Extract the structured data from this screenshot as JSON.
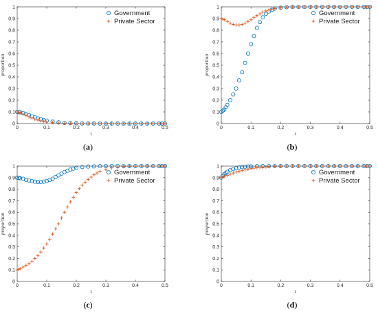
{
  "chart_data": [
    {
      "type": "scatter",
      "caption": "(a)",
      "xlabel": "t",
      "ylabel": "proportion",
      "xlim": [
        0,
        0.5
      ],
      "ylim": [
        0,
        1
      ],
      "xticks": [
        "0",
        "0.1",
        "0.2",
        "0.3",
        "0.4",
        "0.5"
      ],
      "yticks": [
        "0",
        "0.1",
        "0.2",
        "0.3",
        "0.4",
        "0.5",
        "0.6",
        "0.7",
        "0.8",
        "0.9",
        "1"
      ],
      "legend_position": "top-right",
      "series": [
        {
          "name": "Government",
          "marker": "circle",
          "color": "#0072BD",
          "x": [
            0,
            0.005,
            0.01,
            0.02,
            0.03,
            0.04,
            0.05,
            0.06,
            0.07,
            0.08,
            0.09,
            0.1,
            0.12,
            0.14,
            0.16,
            0.18,
            0.2,
            0.22,
            0.24,
            0.26,
            0.28,
            0.3,
            0.32,
            0.34,
            0.36,
            0.38,
            0.4,
            0.42,
            0.44,
            0.46,
            0.48,
            0.49,
            0.5
          ],
          "y": [
            0.1,
            0.098,
            0.096,
            0.09,
            0.082,
            0.072,
            0.062,
            0.053,
            0.044,
            0.037,
            0.03,
            0.024,
            0.016,
            0.01,
            0.006,
            0.004,
            0.002,
            0.001,
            0.001,
            0,
            0,
            0,
            0,
            0,
            0,
            0,
            0,
            0,
            0,
            0,
            0,
            0,
            0
          ]
        },
        {
          "name": "Private Sector",
          "marker": "plus",
          "color": "#D95319",
          "x": [
            0,
            0.005,
            0.01,
            0.02,
            0.03,
            0.04,
            0.05,
            0.06,
            0.07,
            0.08,
            0.09,
            0.1,
            0.12,
            0.14,
            0.16,
            0.18,
            0.2,
            0.22,
            0.24,
            0.26,
            0.28,
            0.3,
            0.32,
            0.34,
            0.36,
            0.38,
            0.4,
            0.42,
            0.44,
            0.46,
            0.48,
            0.49,
            0.5
          ],
          "y": [
            0.1,
            0.096,
            0.092,
            0.082,
            0.07,
            0.058,
            0.047,
            0.038,
            0.03,
            0.024,
            0.018,
            0.014,
            0.008,
            0.005,
            0.003,
            0.002,
            0.001,
            0,
            0,
            0,
            0,
            0,
            0,
            0,
            0,
            0,
            0,
            0,
            0,
            0,
            0,
            0,
            0
          ]
        }
      ]
    },
    {
      "type": "scatter",
      "caption": "(b)",
      "xlabel": "t",
      "ylabel": "proportion",
      "xlim": [
        0,
        0.5
      ],
      "ylim": [
        0,
        1
      ],
      "xticks": [
        "0",
        "0.1",
        "0.2",
        "0.3",
        "0.4",
        "0.5"
      ],
      "yticks": [
        "0",
        "0.1",
        "0.2",
        "0.3",
        "0.4",
        "0.5",
        "0.6",
        "0.7",
        "0.8",
        "0.9",
        "1"
      ],
      "legend_position": "top-right",
      "series": [
        {
          "name": "Government",
          "marker": "circle",
          "color": "#0072BD",
          "x": [
            0,
            0.005,
            0.01,
            0.015,
            0.02,
            0.03,
            0.04,
            0.05,
            0.06,
            0.07,
            0.08,
            0.09,
            0.1,
            0.11,
            0.12,
            0.13,
            0.14,
            0.15,
            0.16,
            0.17,
            0.18,
            0.2,
            0.22,
            0.24,
            0.26,
            0.28,
            0.3,
            0.32,
            0.34,
            0.36,
            0.38,
            0.4,
            0.42,
            0.44,
            0.46,
            0.48,
            0.49,
            0.5
          ],
          "y": [
            0.1,
            0.11,
            0.12,
            0.14,
            0.16,
            0.2,
            0.25,
            0.3,
            0.37,
            0.44,
            0.52,
            0.6,
            0.68,
            0.75,
            0.82,
            0.87,
            0.91,
            0.94,
            0.96,
            0.975,
            0.985,
            0.993,
            0.997,
            0.999,
            1,
            1,
            1,
            1,
            1,
            1,
            1,
            1,
            1,
            1,
            1,
            1,
            1,
            1
          ]
        },
        {
          "name": "Private Sector",
          "marker": "plus",
          "color": "#D95319",
          "x": [
            0,
            0.005,
            0.01,
            0.02,
            0.03,
            0.04,
            0.05,
            0.06,
            0.07,
            0.08,
            0.09,
            0.1,
            0.11,
            0.12,
            0.13,
            0.14,
            0.15,
            0.16,
            0.17,
            0.18,
            0.2,
            0.22,
            0.24,
            0.26,
            0.28,
            0.3,
            0.32,
            0.34,
            0.36,
            0.38,
            0.4,
            0.42,
            0.44,
            0.46,
            0.48,
            0.49,
            0.5
          ],
          "y": [
            0.9,
            0.895,
            0.89,
            0.875,
            0.86,
            0.85,
            0.845,
            0.845,
            0.85,
            0.86,
            0.875,
            0.89,
            0.91,
            0.925,
            0.94,
            0.955,
            0.965,
            0.973,
            0.98,
            0.985,
            0.992,
            0.996,
            0.998,
            0.999,
            1,
            1,
            1,
            1,
            1,
            1,
            1,
            1,
            1,
            1,
            1,
            1,
            1
          ]
        }
      ]
    },
    {
      "type": "scatter",
      "caption": "(c)",
      "xlabel": "t",
      "ylabel": "proportion",
      "xlim": [
        0,
        0.5
      ],
      "ylim": [
        0,
        1
      ],
      "xticks": [
        "0",
        "0.1",
        "0.2",
        "0.3",
        "0.4",
        "0.5"
      ],
      "yticks": [
        "0",
        "0.1",
        "0.2",
        "0.3",
        "0.4",
        "0.5",
        "0.6",
        "0.7",
        "0.8",
        "0.9",
        "1"
      ],
      "legend_position": "top-right",
      "series": [
        {
          "name": "Government",
          "marker": "circle",
          "color": "#0072BD",
          "x": [
            0,
            0.005,
            0.01,
            0.02,
            0.03,
            0.04,
            0.05,
            0.06,
            0.07,
            0.08,
            0.09,
            0.1,
            0.11,
            0.12,
            0.13,
            0.14,
            0.15,
            0.16,
            0.17,
            0.18,
            0.19,
            0.2,
            0.22,
            0.24,
            0.26,
            0.28,
            0.3,
            0.32,
            0.34,
            0.36,
            0.38,
            0.4,
            0.42,
            0.44,
            0.46,
            0.48,
            0.49,
            0.5
          ],
          "y": [
            0.9,
            0.898,
            0.895,
            0.89,
            0.88,
            0.875,
            0.87,
            0.865,
            0.862,
            0.862,
            0.865,
            0.87,
            0.88,
            0.89,
            0.905,
            0.92,
            0.935,
            0.948,
            0.96,
            0.97,
            0.978,
            0.985,
            0.992,
            0.996,
            0.998,
            0.999,
            1,
            1,
            1,
            1,
            1,
            1,
            1,
            1,
            1,
            1,
            1,
            1
          ]
        },
        {
          "name": "Private Sector",
          "marker": "plus",
          "color": "#D95319",
          "x": [
            0,
            0.005,
            0.01,
            0.02,
            0.03,
            0.04,
            0.05,
            0.06,
            0.07,
            0.08,
            0.09,
            0.1,
            0.11,
            0.12,
            0.13,
            0.14,
            0.15,
            0.16,
            0.17,
            0.18,
            0.19,
            0.2,
            0.21,
            0.22,
            0.23,
            0.24,
            0.25,
            0.26,
            0.27,
            0.28,
            0.3,
            0.32,
            0.34,
            0.36,
            0.38,
            0.4,
            0.42,
            0.44,
            0.46,
            0.48,
            0.49,
            0.5
          ],
          "y": [
            0.1,
            0.105,
            0.11,
            0.125,
            0.14,
            0.155,
            0.175,
            0.2,
            0.225,
            0.255,
            0.29,
            0.325,
            0.365,
            0.41,
            0.455,
            0.5,
            0.55,
            0.6,
            0.645,
            0.69,
            0.73,
            0.77,
            0.805,
            0.835,
            0.86,
            0.885,
            0.905,
            0.925,
            0.94,
            0.955,
            0.972,
            0.984,
            0.991,
            0.995,
            0.998,
            0.999,
            1,
            1,
            1,
            1,
            1,
            1
          ]
        }
      ]
    },
    {
      "type": "scatter",
      "caption": "(d)",
      "xlabel": "t",
      "ylabel": "proportion",
      "xlim": [
        0,
        0.5
      ],
      "ylim": [
        0,
        1
      ],
      "xticks": [
        "0",
        "0.1",
        "0.2",
        "0.3",
        "0.4",
        "0.5"
      ],
      "yticks": [
        "0",
        "0.1",
        "0.2",
        "0.3",
        "0.4",
        "0.5",
        "0.6",
        "0.7",
        "0.8",
        "0.9",
        "1"
      ],
      "legend_position": "top-right",
      "series": [
        {
          "name": "Government",
          "marker": "circle",
          "color": "#0072BD",
          "x": [
            0,
            0.005,
            0.01,
            0.015,
            0.02,
            0.03,
            0.04,
            0.05,
            0.06,
            0.07,
            0.08,
            0.09,
            0.1,
            0.12,
            0.14,
            0.16,
            0.18,
            0.2,
            0.22,
            0.24,
            0.26,
            0.28,
            0.3,
            0.32,
            0.34,
            0.36,
            0.38,
            0.4,
            0.42,
            0.44,
            0.46,
            0.48,
            0.49,
            0.5
          ],
          "y": [
            0.9,
            0.915,
            0.93,
            0.94,
            0.95,
            0.965,
            0.975,
            0.983,
            0.988,
            0.992,
            0.995,
            0.997,
            0.998,
            0.999,
            1,
            1,
            1,
            1,
            1,
            1,
            1,
            1,
            1,
            1,
            1,
            1,
            1,
            1,
            1,
            1,
            1,
            1,
            1,
            1
          ]
        },
        {
          "name": "Private Sector",
          "marker": "plus",
          "color": "#D95319",
          "x": [
            0,
            0.005,
            0.01,
            0.02,
            0.03,
            0.04,
            0.05,
            0.06,
            0.07,
            0.08,
            0.09,
            0.1,
            0.11,
            0.12,
            0.13,
            0.14,
            0.15,
            0.16,
            0.18,
            0.2,
            0.22,
            0.24,
            0.26,
            0.28,
            0.3,
            0.32,
            0.34,
            0.36,
            0.38,
            0.4,
            0.42,
            0.44,
            0.46,
            0.48,
            0.49,
            0.5
          ],
          "y": [
            0.9,
            0.905,
            0.91,
            0.92,
            0.93,
            0.94,
            0.948,
            0.955,
            0.962,
            0.968,
            0.973,
            0.978,
            0.982,
            0.986,
            0.989,
            0.991,
            0.993,
            0.995,
            0.997,
            0.998,
            0.999,
            1,
            1,
            1,
            1,
            1,
            1,
            1,
            1,
            1,
            1,
            1,
            1,
            1,
            1,
            1
          ]
        }
      ]
    }
  ]
}
